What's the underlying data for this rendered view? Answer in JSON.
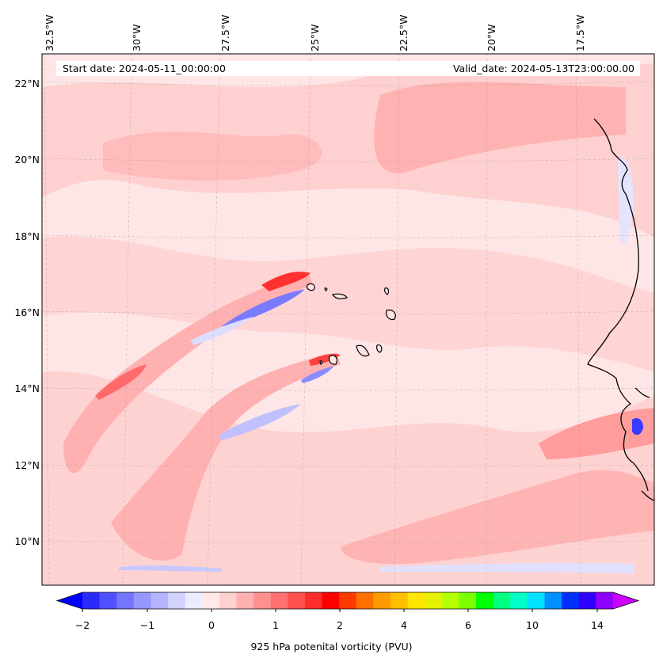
{
  "header": {
    "start_date": "Start date: 2024-05-11_00:00:00",
    "valid_date": "Valid_date: 2024-05-13T23:00:00.00"
  },
  "map": {
    "lon_labels": [
      "32.5°W",
      "30°W",
      "27.5°W",
      "25°W",
      "22.5°W",
      "20°W",
      "17.5°W"
    ],
    "lat_labels": [
      "22°N",
      "20°N",
      "18°N",
      "16°N",
      "14°N",
      "12°N",
      "10°N"
    ],
    "background_color": "#ffe8e8",
    "coastline_color": "#000000"
  },
  "colorbar": {
    "label": "925 hPa potenital vorticity (PVU)",
    "tick_labels": [
      "−2",
      "−1",
      "0",
      "1",
      "2",
      "4",
      "6",
      "10",
      "14"
    ],
    "colors": [
      "#0000ff",
      "#2a2aff",
      "#5050ff",
      "#7474ff",
      "#9696ff",
      "#b4b4ff",
      "#d2d2ff",
      "#ececff",
      "#ffe8e8",
      "#ffd0d0",
      "#ffb0b0",
      "#ff9090",
      "#ff7070",
      "#ff5050",
      "#ff2c2c",
      "#ff0000",
      "#ff3a00",
      "#ff7000",
      "#ff9a00",
      "#ffbe00",
      "#ffe600",
      "#e6f000",
      "#b4ff00",
      "#7cff00",
      "#00ff00",
      "#00ff80",
      "#00ffc8",
      "#00e0ff",
      "#0090ff",
      "#0030ff",
      "#3000ff",
      "#9000ff",
      "#cc00ff"
    ]
  }
}
